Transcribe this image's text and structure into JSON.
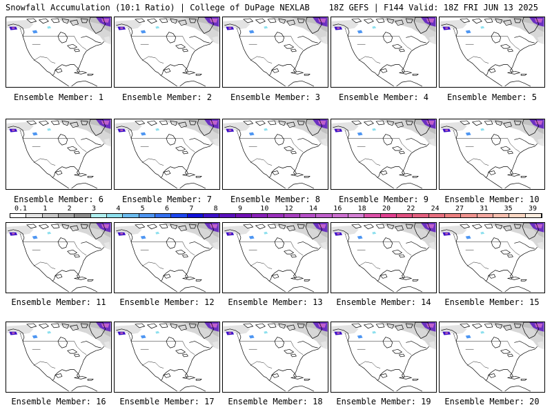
{
  "header": {
    "left": "Snowfall Accumulation (10:1 Ratio) | College of DuPage NEXLAB",
    "right": "18Z GEFS | F144 Valid: 18Z FRI JUN 13 2025"
  },
  "members": [
    "Ensemble Member: 1",
    "Ensemble Member: 2",
    "Ensemble Member: 3",
    "Ensemble Member: 4",
    "Ensemble Member: 5",
    "Ensemble Member: 6",
    "Ensemble Member: 7",
    "Ensemble Member: 8",
    "Ensemble Member: 9",
    "Ensemble Member: 10",
    "Ensemble Member: 11",
    "Ensemble Member: 12",
    "Ensemble Member: 13",
    "Ensemble Member: 14",
    "Ensemble Member: 15",
    "Ensemble Member: 16",
    "Ensemble Member: 17",
    "Ensemble Member: 18",
    "Ensemble Member: 19",
    "Ensemble Member: 20"
  ],
  "color_scale": {
    "labels": [
      "0.1",
      "1",
      "2",
      "3",
      "4",
      "5",
      "6",
      "7",
      "8",
      "9",
      "10",
      "12",
      "14",
      "16",
      "18",
      "20",
      "22",
      "24",
      "27",
      "31",
      "35",
      "39"
    ],
    "colors": [
      "#ffffff",
      "#e6e6e6",
      "#c8c8c8",
      "#a8a8a8",
      "#8c8c8c",
      "#b0f0f0",
      "#8ee0ee",
      "#6cbcf0",
      "#4e96f2",
      "#3470f0",
      "#1c46ee",
      "#1010d8",
      "#3c10c8",
      "#5a10bc",
      "#7010b4",
      "#8820b8",
      "#9a30bc",
      "#a840c0",
      "#b650c8",
      "#c060cc",
      "#cc70d0",
      "#d480d4",
      "#dc50a8",
      "#e04090",
      "#e05080",
      "#e46080",
      "#e87080",
      "#ec8080",
      "#f09490",
      "#f4a8a0",
      "#f8c0b0",
      "#fcd8c4",
      "#fdeee0"
    ]
  }
}
